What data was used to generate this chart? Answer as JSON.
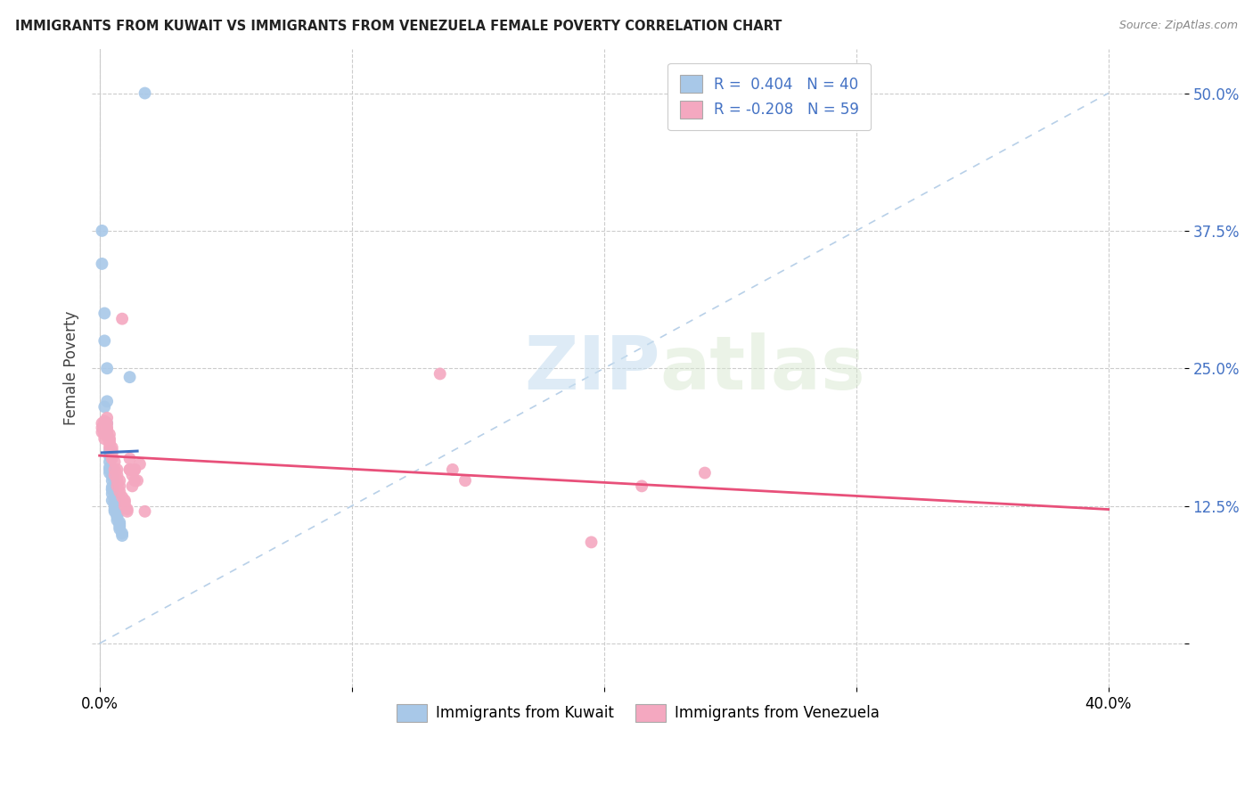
{
  "title": "IMMIGRANTS FROM KUWAIT VS IMMIGRANTS FROM VENEZUELA FEMALE POVERTY CORRELATION CHART",
  "source": "Source: ZipAtlas.com",
  "ylabel": "Female Poverty",
  "y_ticks": [
    0.0,
    0.125,
    0.25,
    0.375,
    0.5
  ],
  "y_tick_labels": [
    "",
    "12.5%",
    "25.0%",
    "37.5%",
    "50.0%"
  ],
  "x_ticks": [
    0.0,
    0.1,
    0.2,
    0.3,
    0.4
  ],
  "x_tick_labels": [
    "0.0%",
    "",
    "",
    "",
    "40.0%"
  ],
  "xlim": [
    -0.003,
    0.43
  ],
  "ylim": [
    -0.04,
    0.54
  ],
  "kuwait_color": "#a8c8e8",
  "venezuela_color": "#f4a8c0",
  "kuwait_line_color": "#4472c4",
  "venezuela_line_color": "#e8507a",
  "kuwait_R": 0.404,
  "kuwait_N": 40,
  "venezuela_R": -0.208,
  "venezuela_N": 59,
  "legend_label_kuwait": "Immigrants from Kuwait",
  "legend_label_venezuela": "Immigrants from Venezuela",
  "watermark_zip": "ZIP",
  "watermark_atlas": "atlas",
  "background_color": "#ffffff",
  "grid_color": "#cccccc",
  "kuwait_scatter": [
    [
      0.001,
      0.375
    ],
    [
      0.001,
      0.345
    ],
    [
      0.002,
      0.3
    ],
    [
      0.002,
      0.275
    ],
    [
      0.002,
      0.215
    ],
    [
      0.003,
      0.22
    ],
    [
      0.003,
      0.2
    ],
    [
      0.003,
      0.19
    ],
    [
      0.003,
      0.25
    ],
    [
      0.004,
      0.175
    ],
    [
      0.004,
      0.17
    ],
    [
      0.004,
      0.165
    ],
    [
      0.004,
      0.16
    ],
    [
      0.004,
      0.158
    ],
    [
      0.004,
      0.155
    ],
    [
      0.005,
      0.158
    ],
    [
      0.005,
      0.152
    ],
    [
      0.005,
      0.148
    ],
    [
      0.005,
      0.142
    ],
    [
      0.005,
      0.14
    ],
    [
      0.005,
      0.14
    ],
    [
      0.005,
      0.136
    ],
    [
      0.005,
      0.13
    ],
    [
      0.006,
      0.13
    ],
    [
      0.006,
      0.128
    ],
    [
      0.006,
      0.125
    ],
    [
      0.006,
      0.122
    ],
    [
      0.006,
      0.12
    ],
    [
      0.007,
      0.118
    ],
    [
      0.007,
      0.116
    ],
    [
      0.007,
      0.115
    ],
    [
      0.007,
      0.112
    ],
    [
      0.008,
      0.11
    ],
    [
      0.008,
      0.108
    ],
    [
      0.008,
      0.106
    ],
    [
      0.008,
      0.104
    ],
    [
      0.009,
      0.1
    ],
    [
      0.009,
      0.098
    ],
    [
      0.012,
      0.242
    ],
    [
      0.018,
      0.5
    ]
  ],
  "venezuela_scatter": [
    [
      0.001,
      0.2
    ],
    [
      0.001,
      0.196
    ],
    [
      0.001,
      0.192
    ],
    [
      0.002,
      0.202
    ],
    [
      0.002,
      0.198
    ],
    [
      0.002,
      0.194
    ],
    [
      0.002,
      0.19
    ],
    [
      0.002,
      0.186
    ],
    [
      0.003,
      0.205
    ],
    [
      0.003,
      0.2
    ],
    [
      0.003,
      0.196
    ],
    [
      0.003,
      0.192
    ],
    [
      0.003,
      0.188
    ],
    [
      0.003,
      0.195
    ],
    [
      0.003,
      0.19
    ],
    [
      0.004,
      0.185
    ],
    [
      0.004,
      0.182
    ],
    [
      0.004,
      0.19
    ],
    [
      0.004,
      0.186
    ],
    [
      0.004,
      0.182
    ],
    [
      0.004,
      0.178
    ],
    [
      0.005,
      0.175
    ],
    [
      0.005,
      0.178
    ],
    [
      0.005,
      0.172
    ],
    [
      0.005,
      0.168
    ],
    [
      0.006,
      0.165
    ],
    [
      0.006,
      0.158
    ],
    [
      0.006,
      0.153
    ],
    [
      0.007,
      0.158
    ],
    [
      0.007,
      0.153
    ],
    [
      0.007,
      0.148
    ],
    [
      0.007,
      0.143
    ],
    [
      0.008,
      0.148
    ],
    [
      0.008,
      0.143
    ],
    [
      0.008,
      0.138
    ],
    [
      0.009,
      0.295
    ],
    [
      0.009,
      0.133
    ],
    [
      0.01,
      0.13
    ],
    [
      0.01,
      0.128
    ],
    [
      0.01,
      0.125
    ],
    [
      0.011,
      0.122
    ],
    [
      0.011,
      0.12
    ],
    [
      0.012,
      0.168
    ],
    [
      0.012,
      0.158
    ],
    [
      0.012,
      0.158
    ],
    [
      0.013,
      0.153
    ],
    [
      0.013,
      0.143
    ],
    [
      0.014,
      0.148
    ],
    [
      0.014,
      0.158
    ],
    [
      0.014,
      0.158
    ],
    [
      0.015,
      0.148
    ],
    [
      0.016,
      0.163
    ],
    [
      0.018,
      0.12
    ],
    [
      0.14,
      0.158
    ],
    [
      0.145,
      0.148
    ],
    [
      0.195,
      0.092
    ],
    [
      0.215,
      0.143
    ],
    [
      0.24,
      0.155
    ],
    [
      0.135,
      0.245
    ]
  ]
}
